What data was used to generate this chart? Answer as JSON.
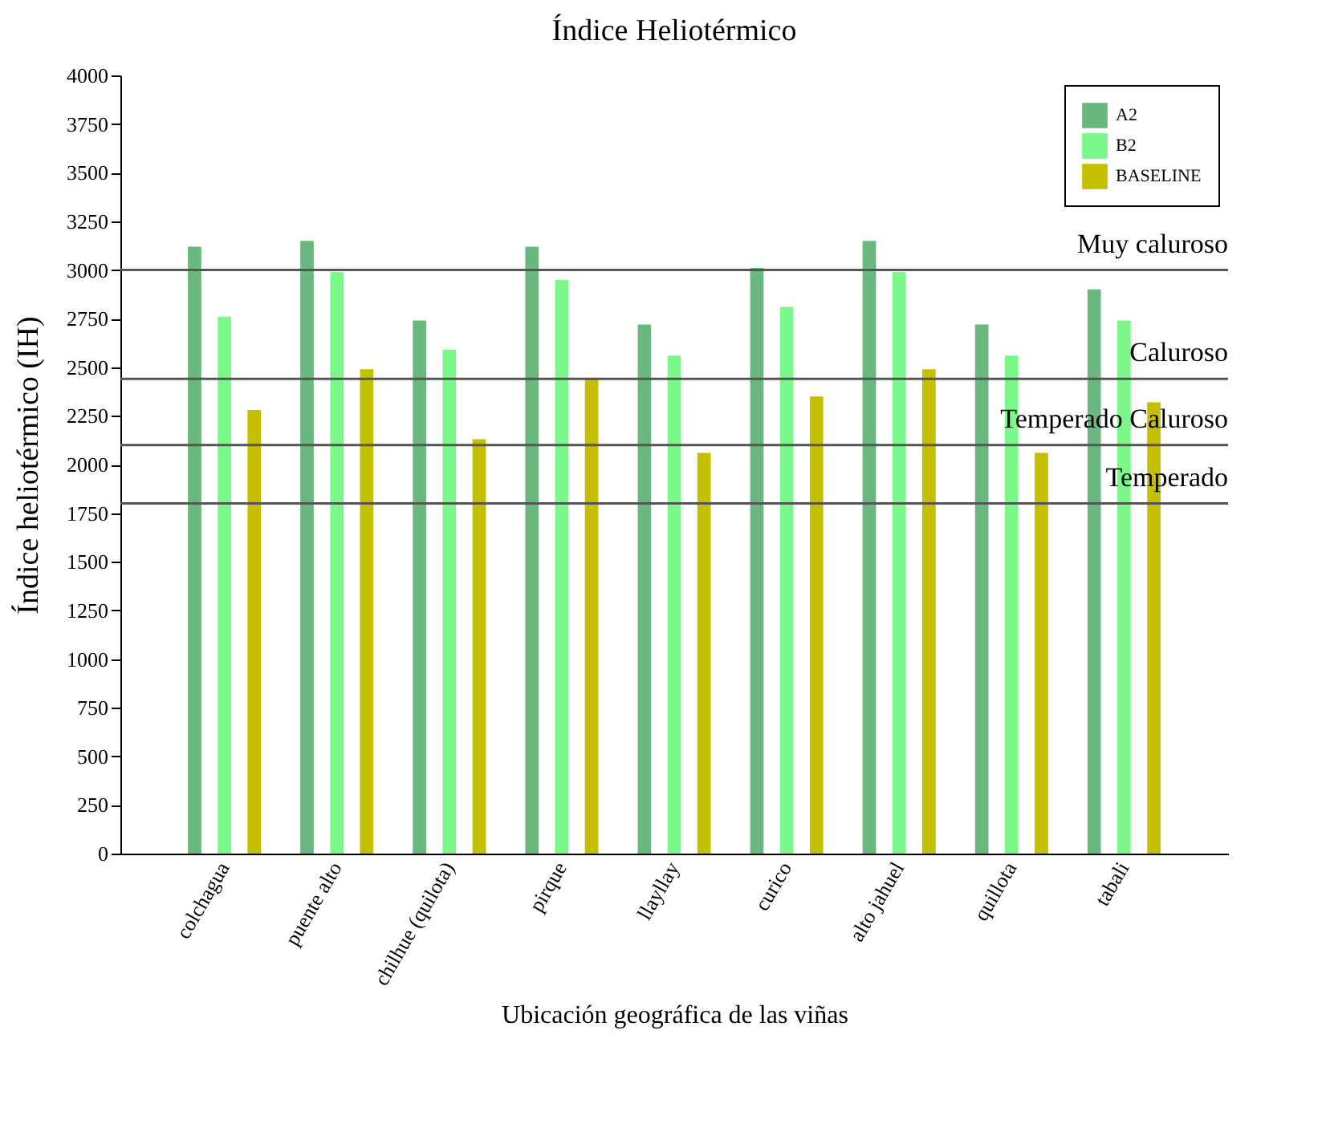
{
  "chart_data": {
    "type": "bar",
    "title": "Índice Heliotérmico",
    "xlabel": "Ubicación geográfica de las viñas",
    "ylabel": "Índice heliotérmico (IH)",
    "categories": [
      "colchagua",
      "puente alto",
      "chilhue (quilota)",
      "pirque",
      "llayllay",
      "curico",
      "alto jahuel",
      "quillota",
      "tabali"
    ],
    "series": [
      {
        "name": "A2",
        "color": "#6ab87f",
        "values": [
          3120,
          3150,
          2740,
          3120,
          2720,
          3010,
          3150,
          2720,
          2900
        ]
      },
      {
        "name": "B2",
        "color": "#7af88a",
        "values": [
          2760,
          2990,
          2590,
          2950,
          2560,
          2810,
          2990,
          2560,
          2740
        ]
      },
      {
        "name": "BASELINE",
        "color": "#c4c000",
        "values": [
          2280,
          2490,
          2130,
          2440,
          2060,
          2350,
          2490,
          2060,
          2320
        ]
      }
    ],
    "ylim": [
      0,
      4000
    ],
    "yticks": [
      0,
      250,
      500,
      750,
      1000,
      1250,
      1500,
      1750,
      2000,
      2250,
      2500,
      2750,
      3000,
      3250,
      3500,
      3750,
      4000
    ],
    "ref_lines": [
      {
        "axis": "y",
        "value": 3000,
        "label": "Muy caluroso",
        "color": "#555555"
      },
      {
        "axis": "y",
        "value": 2440,
        "label": "Caluroso",
        "color": "#555555"
      },
      {
        "axis": "y",
        "value": 2100,
        "label": "Temperado Caluroso",
        "color": "#555555"
      },
      {
        "axis": "y",
        "value": 1800,
        "label": "Temperado",
        "color": "#555555"
      }
    ],
    "grid": false,
    "legend": "top right"
  }
}
